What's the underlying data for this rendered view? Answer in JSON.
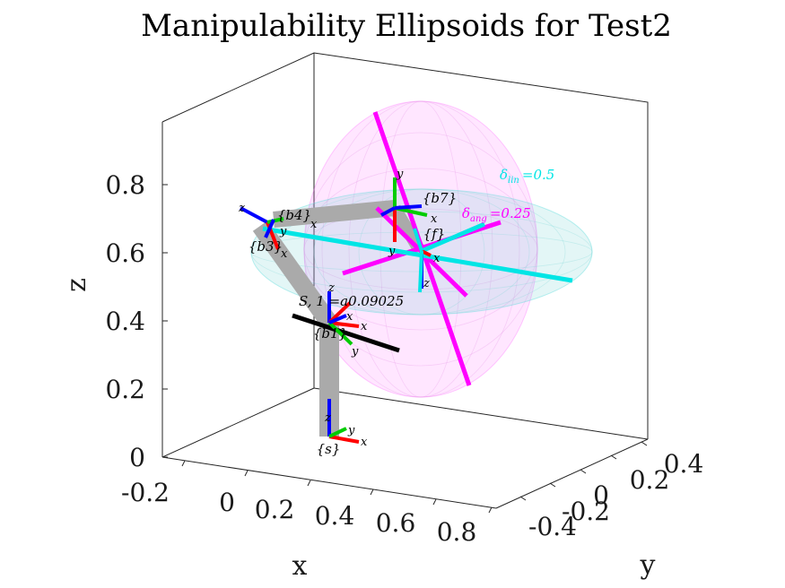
{
  "chart_data": {
    "type": "3d-line",
    "title": "Manipulability Ellipsoids for Test2",
    "xlabel": "x",
    "ylabel": "y",
    "zlabel": "z",
    "x_ticks": [
      "-0.2",
      "0",
      "0.2",
      "0.4",
      "0.6",
      "0.8"
    ],
    "y_ticks": [
      "-0.4",
      "-0.2",
      "0",
      "0.2",
      "0.4"
    ],
    "z_ticks": [
      "0",
      "0.2",
      "0.4",
      "0.6",
      "0.8"
    ],
    "annotations": {
      "lin_label": "δ",
      "lin_sub": "lin",
      "lin_value": "=0.5",
      "ang_label": "δ",
      "ang_sub": "ang",
      "ang_value": "=0.25",
      "singular_label": "S, 1 =a0.09025"
    },
    "frames": [
      {
        "name": "{s}"
      },
      {
        "name": "{b1}"
      },
      {
        "name": "{b3}"
      },
      {
        "name": "{b4}"
      },
      {
        "name": "{b7}"
      },
      {
        "name": "{f}"
      }
    ],
    "colors": {
      "x_axis": "#ff0000",
      "y_axis": "#00cc00",
      "z_axis": "#0000ff",
      "link": "#aaaaaa",
      "lin_ellipsoid": "#00e5e5",
      "ang_ellipsoid": "#ff00ff",
      "singular": "#000000"
    }
  }
}
